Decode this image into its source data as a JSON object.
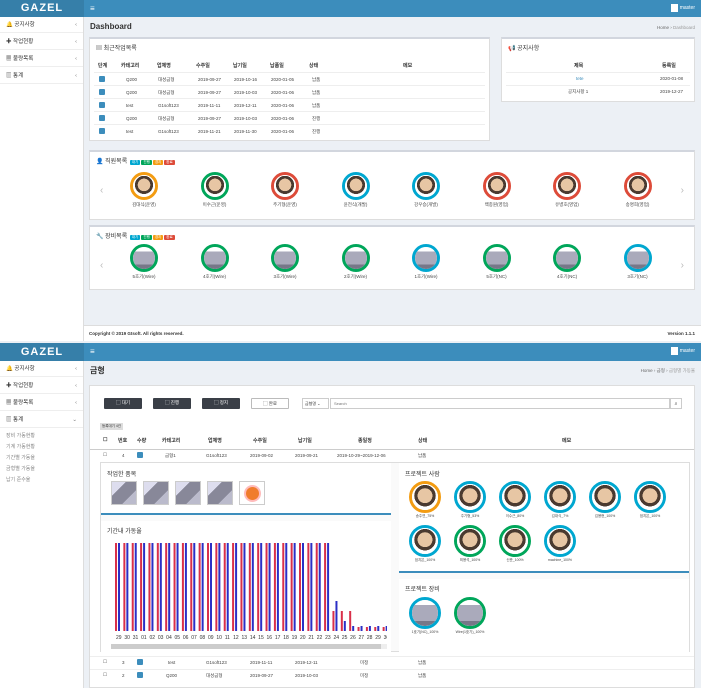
{
  "app": {
    "logo": "GAZEL",
    "user": "master"
  },
  "sidebar": {
    "items": [
      "공지사항",
      "작업현황",
      "불량목록",
      "통계"
    ]
  },
  "sidebar2": {
    "sub": [
      "장비 가동현황",
      "기계 가동현황",
      "기간별 가동율",
      "금형별 가동율",
      "납기 준수율"
    ]
  },
  "dash": {
    "title": "Dashboard",
    "bc_home": "Home",
    "bc_cur": "Dashboard",
    "recent": {
      "title": "최근작업목록",
      "cols": [
        "단계",
        "카테고리",
        "업체명",
        "수주일",
        "납기일",
        "납품일",
        "상태",
        "메모"
      ],
      "rows": [
        [
          "Q200",
          "대성금형",
          "2019-09-27",
          "2019-10-16",
          "2020-01-05",
          "납품"
        ],
        [
          "Q200",
          "대성금형",
          "2019-09-27",
          "2019-10-03",
          "2020-01-06",
          "납품"
        ],
        [
          "test",
          "G1soft123",
          "2019-11-11",
          "2019-12-11",
          "2020-01-06",
          "납품"
        ],
        [
          "Q200",
          "대성금형",
          "2019-09-27",
          "2019-10-03",
          "2020-01-06",
          "진행"
        ],
        [
          "test",
          "G1soft123",
          "2019-11-21",
          "2019-11-30",
          "2020-01-06",
          "진행"
        ]
      ]
    },
    "notice": {
      "title": "공지사항",
      "cols": [
        "제목",
        "등록일"
      ],
      "rows": [
        [
          "tete",
          "2020-01-08"
        ],
        [
          "공지사항 1",
          "2019-12-27"
        ]
      ]
    },
    "staff": {
      "title": "직원목록",
      "tags": [
        "대기",
        "진행",
        "경지",
        "완료"
      ],
      "names": [
        "김대식(운영)",
        "이수근(운영)",
        "주기형(운영)",
        "윤전식(개발)",
        "강우승(개발)",
        "백종원(영업)",
        "유병호(영업)",
        "송명희(영업)"
      ]
    },
    "equip": {
      "title": "장비목록",
      "tags": [
        "대기",
        "진행",
        "경지",
        "완료"
      ],
      "names": [
        "5호기(Wire)",
        "4호기(Wire)",
        "3호기(Wire)",
        "2호기(Wire)",
        "1호기(Wire)",
        "5호기(NC)",
        "4호기(NC)",
        "3호기(NC)"
      ]
    },
    "footer": {
      "copy": "Copyright © 2019 Gtsoft. All rights reserved.",
      "version": "Version 1.1.1"
    }
  },
  "mold": {
    "title": "금형",
    "bc": [
      "Home",
      "금형",
      "금형별 가동율"
    ],
    "buttons": [
      "대기",
      "진행",
      "정지",
      "완료"
    ],
    "search_sel": "금형명",
    "search_ph": "Search",
    "tag": "등록대기 4건",
    "cols": [
      "번호",
      "수량",
      "카테고리",
      "업체명",
      "수주일",
      "납기일",
      "종일정",
      "상태",
      "메모"
    ],
    "row1": [
      "4",
      "",
      "금형1",
      "G1soft123",
      "2019-09-02",
      "2019-09-21",
      "2019-10-29~2019-12-06",
      "납품"
    ],
    "done": {
      "title": "작업한 품목"
    },
    "rate": {
      "title": "기간내 가동율"
    },
    "xlabels": [
      "29",
      "30",
      "31",
      "01",
      "02",
      "03",
      "04",
      "05",
      "06",
      "07",
      "08",
      "09",
      "10",
      "11",
      "12",
      "13",
      "14",
      "15",
      "16",
      "17",
      "18",
      "19",
      "20",
      "21",
      "22",
      "23",
      "24",
      "25",
      "26",
      "27",
      "28",
      "29",
      "30"
    ],
    "people": {
      "title": "프로젝트 사람",
      "names": [
        "송주연_75%",
        "주기형_53%",
        "이수근_80%",
        "김대식_7%",
        "김용현_100%",
        "엄지은_100%",
        "엄지은_100%",
        "최용석_100%",
        "신준_100%",
        "machine_100%"
      ]
    },
    "pequip": {
      "title": "프로젝트 장비",
      "names": [
        "1호기(NC)_100%",
        "Wire(1호기)_100%"
      ]
    },
    "rows": [
      [
        "3",
        "",
        "test",
        "G1soft123",
        "2019-11-11",
        "2019-12-11",
        "미정",
        "납품"
      ],
      [
        "2",
        "",
        "Q200",
        "대성금형",
        "2019-09-27",
        "2019-10-03",
        "미정",
        "납품"
      ]
    ]
  }
}
